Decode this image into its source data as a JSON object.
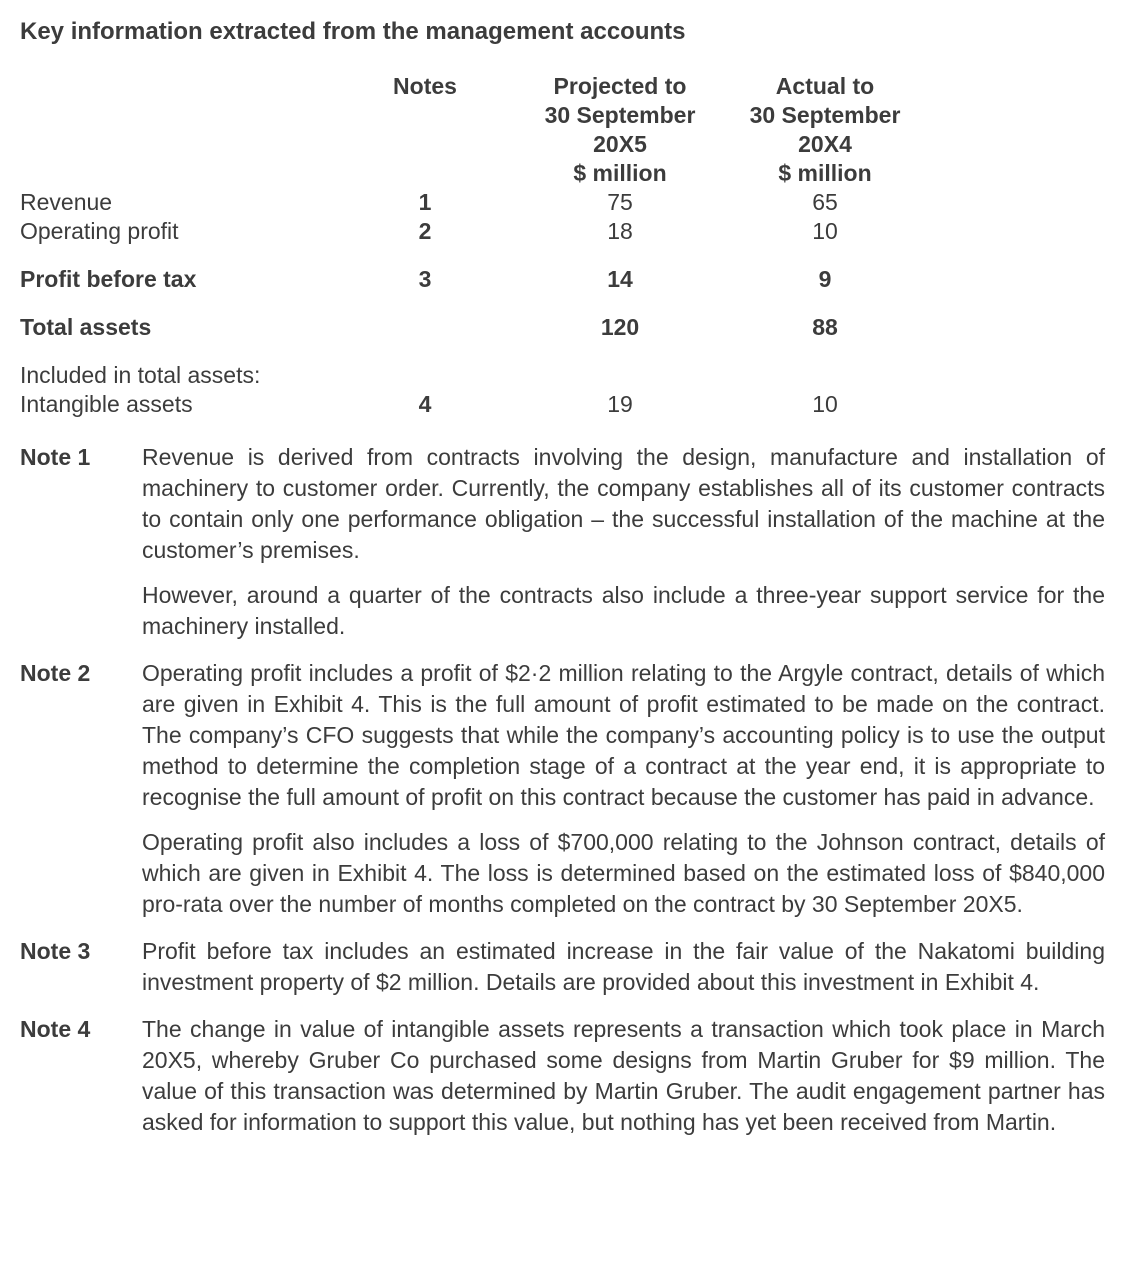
{
  "title": "Key information extracted from the management accounts",
  "table": {
    "header": {
      "notes": "Notes",
      "col1": {
        "l1": "Projected to",
        "l2": "30 September",
        "l3": "20X5",
        "l4": "$ million"
      },
      "col2": {
        "l1": "Actual to",
        "l2": "30 September",
        "l3": "20X4",
        "l4": "$ million"
      }
    },
    "rows": [
      {
        "label": "Revenue",
        "note": "1",
        "v1": "75",
        "v2": "65"
      },
      {
        "label": "Operating profit",
        "note": "2",
        "v1": "18",
        "v2": "10"
      },
      {
        "label": "Profit before tax",
        "note": "3",
        "v1": "14",
        "v2": "9"
      },
      {
        "label": "Total assets",
        "note": "",
        "v1": "120",
        "v2": "88"
      },
      {
        "label": "Included in total assets:",
        "note": "",
        "v1": "",
        "v2": ""
      },
      {
        "label": "Intangible assets",
        "note": "4",
        "v1": "19",
        "v2": "10"
      }
    ]
  },
  "notes": [
    {
      "label": "Note 1",
      "p1": "Revenue is derived from contracts involving the design, manufacture and installation of machinery to customer order. Currently, the company establishes all of its customer contracts to contain only one performance obligation – the successful installation of the machine at the customer’s premises.",
      "p2": "However, around a quarter of the contracts also include a three-year support service for the machinery installed."
    },
    {
      "label": "Note 2",
      "p1": "Operating profit includes a profit of $2·2 million relating to the Argyle contract, details of which are given in Exhibit 4. This is the full amount of profit estimated to be made on the contract. The company’s CFO suggests that while the company’s accounting policy is to use the output method to determine the completion stage of a contract at the year end, it is appropriate to recognise the full amount of profit on this contract because the customer has paid in advance.",
      "p2": "Operating profit also includes a loss of $700,000 relating to the Johnson contract, details of which are given in Exhibit 4. The loss is determined based on the estimated loss of $840,000 pro-rata over the number of months completed on the contract by 30 September 20X5."
    },
    {
      "label": "Note 3",
      "p1": "Profit before tax includes an estimated increase in the fair value of the Nakatomi building investment property of $2 million. Details are provided about this investment in Exhibit 4."
    },
    {
      "label": "Note 4",
      "p1": "The change in value of intangible assets represents a transaction which took place in March 20X5, whereby Gruber Co purchased some designs from Martin Gruber for $9 million. The value of this transaction was determined by Martin Gruber. The audit engagement partner has asked for information to support this value, but nothing has yet been received from Martin."
    }
  ]
}
